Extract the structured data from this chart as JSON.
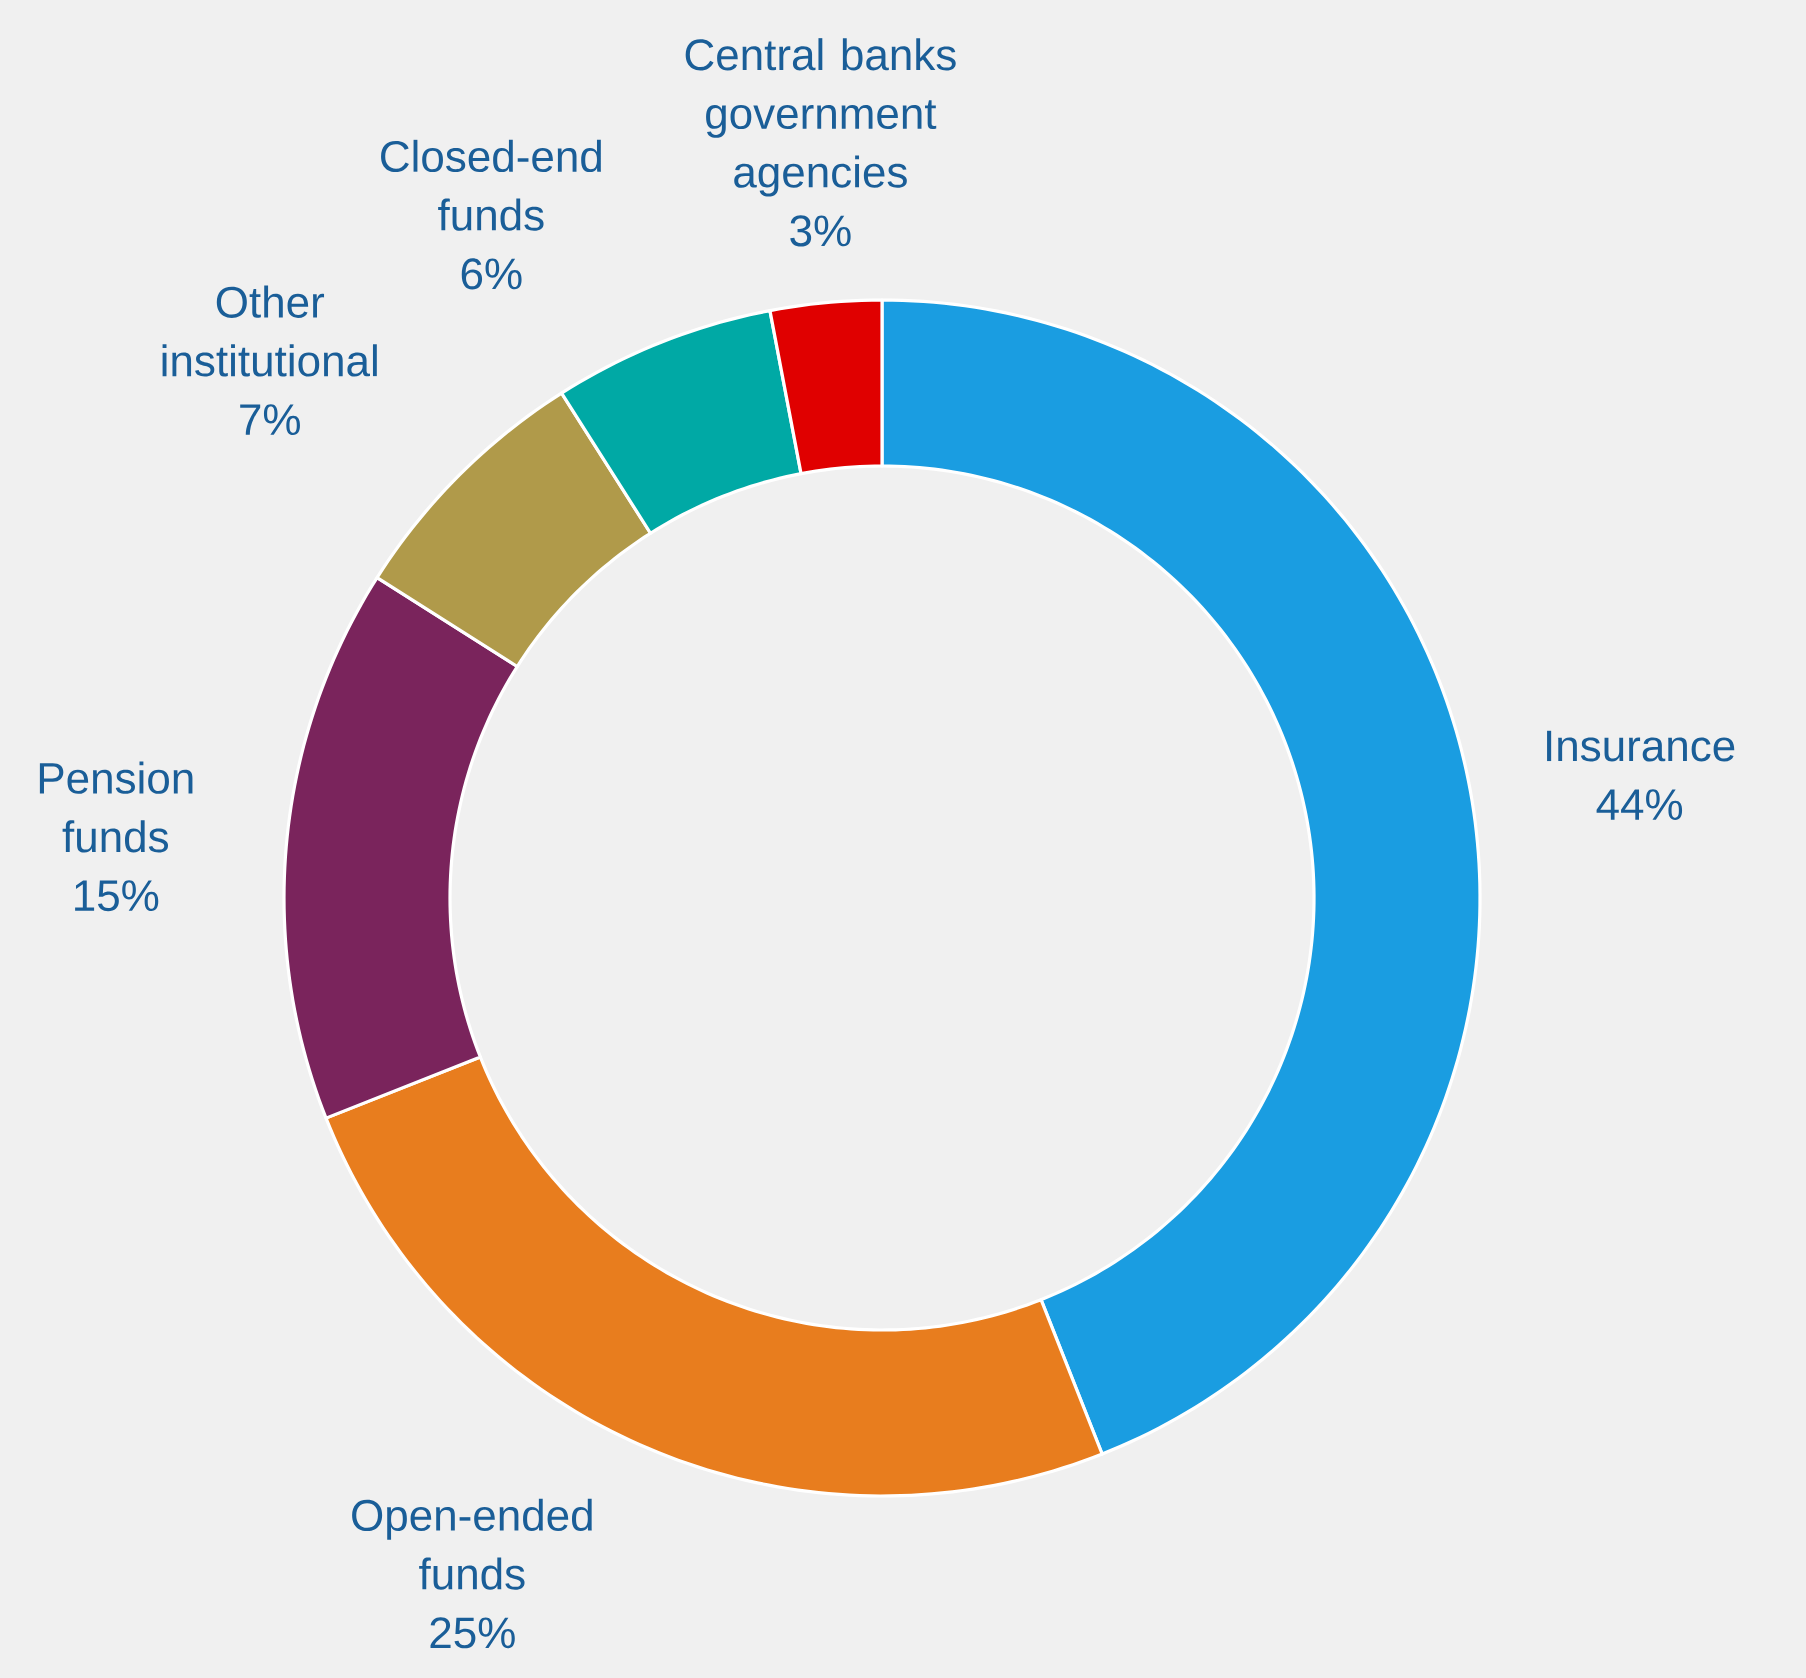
{
  "chart_data": {
    "type": "donut",
    "categories": [
      "Insurance",
      "Open-ended funds",
      "Pension funds",
      "Other institutional",
      "Closed-end funds",
      "Central banks government agencies"
    ],
    "values": [
      44,
      25,
      15,
      7,
      6,
      3
    ],
    "value_labels": [
      "44%",
      "25%",
      "15%",
      "7%",
      "6%",
      "3%"
    ],
    "colors": [
      "#1a9de1",
      "#e87d1e",
      "#7a245c",
      "#b09a4a",
      "#00a9a5",
      "#e00000"
    ]
  }
}
